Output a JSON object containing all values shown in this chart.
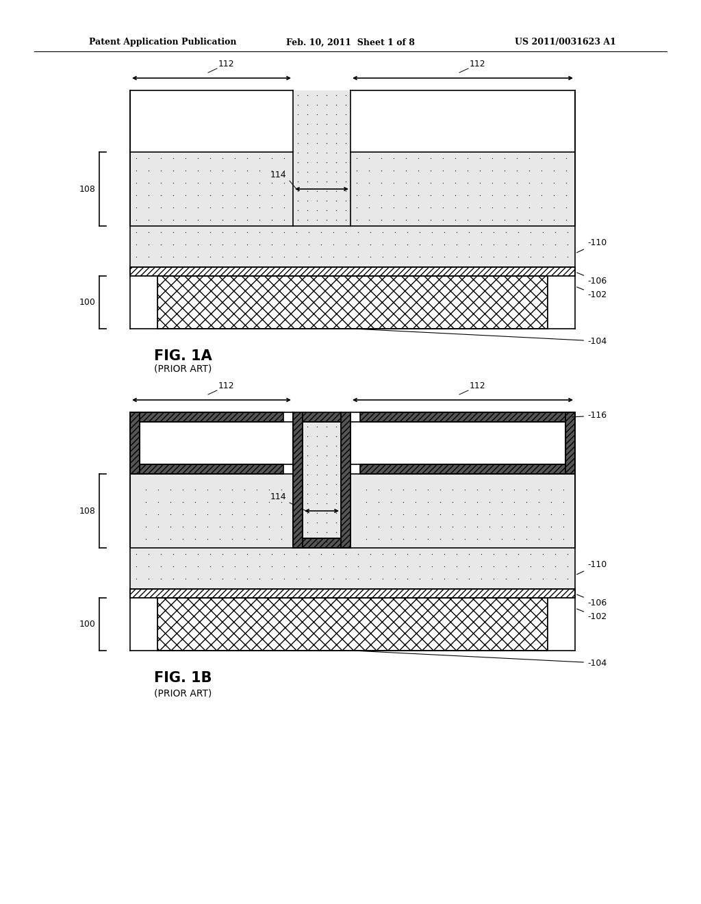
{
  "header": {
    "left": "Patent Application Publication",
    "center": "Feb. 10, 2011  Sheet 1 of 8",
    "right": "US 2011/0031623 A1"
  },
  "fig1a": {
    "title": "FIG. 1A",
    "subtitle": "(PRIOR ART)"
  },
  "fig1b": {
    "title": "FIG. 1B",
    "subtitle": "(PRIOR ART)"
  }
}
